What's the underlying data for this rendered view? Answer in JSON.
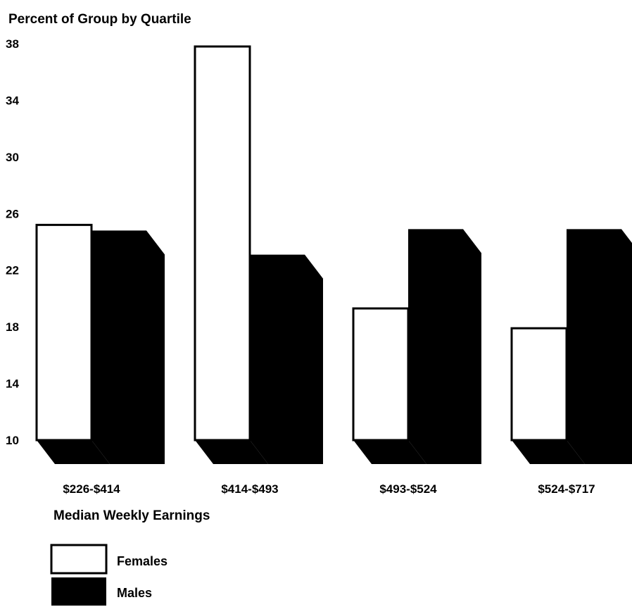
{
  "chart_data": {
    "type": "bar",
    "title": "Percent of Group by Quartile",
    "xlabel": "Median Weekly Earnings",
    "ylabel": "",
    "ylim": [
      10,
      38
    ],
    "yticks": [
      "10",
      "14",
      "18",
      "22",
      "26",
      "30",
      "34",
      "38"
    ],
    "categories": [
      "$226-$414",
      "$414-$493",
      "$493-$524",
      "$524-$717"
    ],
    "series": [
      {
        "name": "Females",
        "color": "#ffffff",
        "values": [
          25.2,
          37.8,
          19.3,
          17.9
        ]
      },
      {
        "name": "Males",
        "color": "#000000",
        "values": [
          24.8,
          23.1,
          24.9,
          24.9
        ]
      }
    ],
    "grid": false,
    "legend_position": "bottom-left",
    "style": "3d-bar"
  }
}
